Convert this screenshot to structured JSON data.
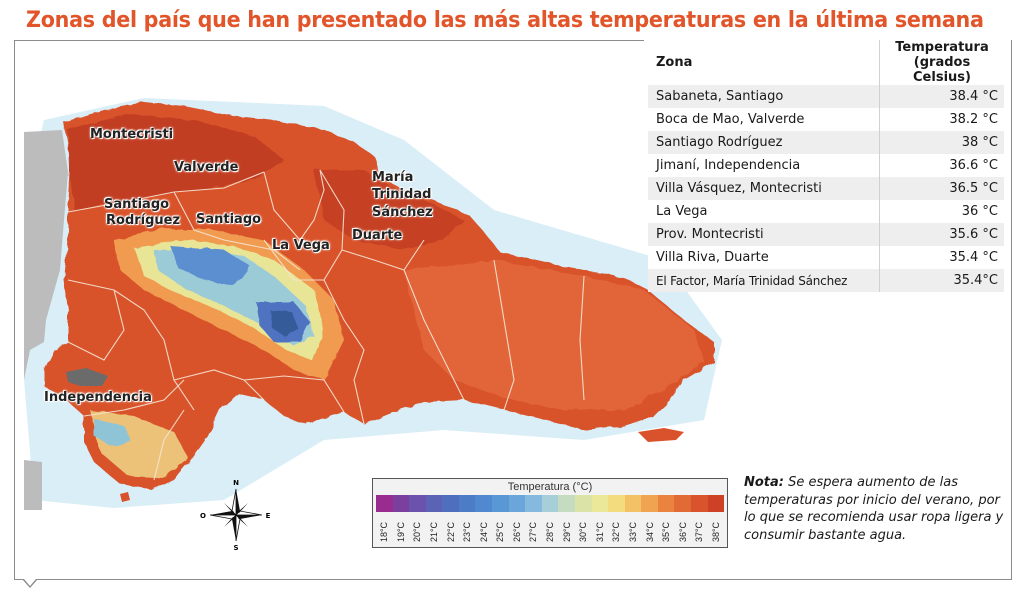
{
  "title": "Zonas del país que han presentado las más altas temperaturas en la última semana",
  "table": {
    "header_zona": "Zona",
    "header_temp_line1": "Temperatura",
    "header_temp_line2": "(grados Celsius)",
    "rows": [
      {
        "zona": "Sabaneta, Santiago",
        "temp": "38.4 °C"
      },
      {
        "zona": "Boca de Mao, Valverde",
        "temp": "38.2 °C"
      },
      {
        "zona": "Santiago Rodríguez",
        "temp": "38 °C"
      },
      {
        "zona": "Jimaní, Independencia",
        "temp": "36.6 °C"
      },
      {
        "zona": "Villa Vásquez, Montecristi",
        "temp": "36.5 °C"
      },
      {
        "zona": "La Vega",
        "temp": "36 °C"
      },
      {
        "zona": "Prov. Montecristi",
        "temp": "35.6 °C"
      },
      {
        "zona": "Villa Riva, Duarte",
        "temp": "35.4 °C"
      },
      {
        "zona": "El Factor, María Trinidad Sánchez",
        "temp": "35.4°C"
      }
    ]
  },
  "map_labels": {
    "montecristi": "Montecristi",
    "valverde": "Valverde",
    "santiago_rodriguez_1": "Santiago",
    "santiago_rodriguez_2": "Rodríguez",
    "santiago": "Santiago",
    "la_vega": "La Vega",
    "mts_1": "María",
    "mts_2": "Trinidad",
    "mts_3": "Sánchez",
    "duarte": "Duarte",
    "independencia": "Independencia"
  },
  "legend": {
    "title": "Temperatura (°C)",
    "labels": [
      "18°C",
      "19°C",
      "20°C",
      "21°C",
      "22°C",
      "23°C",
      "24°C",
      "25°C",
      "26°C",
      "27°C",
      "28°C",
      "29°C",
      "30°C",
      "31°C",
      "32°C",
      "33°C",
      "34°C",
      "35°C",
      "36°C",
      "37°C",
      "38°C"
    ],
    "colors": [
      "#9b2c8f",
      "#7b3f9e",
      "#6a52ad",
      "#5a63b6",
      "#4f6fbe",
      "#4c7cc6",
      "#5089cf",
      "#5a97d5",
      "#6aa6da",
      "#86b9de",
      "#a7cfd9",
      "#c6dcc0",
      "#dbe3a6",
      "#ece89a",
      "#f3dc7e",
      "#f3c266",
      "#f0a451",
      "#ea8240",
      "#e26a35",
      "#d9542c",
      "#cf4126"
    ]
  },
  "compass": {
    "n": "N",
    "s": "S",
    "e": "E",
    "o": "O"
  },
  "note": {
    "label": "Nota:",
    "text": " Se espera aumento de las temperaturas por inicio del verano, por lo que se recomienda usar ropa ligera y consumir bastante agua."
  },
  "colors": {
    "title": "#e2552a",
    "hot": "#d94f2a",
    "hotter": "#b83220",
    "warm": "#e8743a",
    "sea": "#bfe0ef",
    "haiti": "#bdbdbd"
  }
}
